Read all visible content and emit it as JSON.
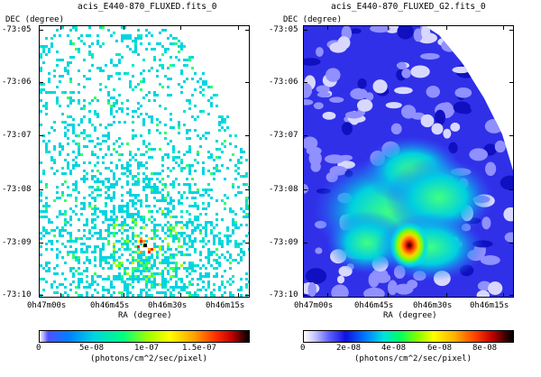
{
  "left_panel": {
    "title": "acis_E440-870_FLUXED.fits_0",
    "y_axis_title": "DEC (degree)",
    "x_axis_title": "RA (degree)",
    "y_ticks": [
      "-73:05",
      "-73:06",
      "-73:07",
      "-73:08",
      "-73:09",
      "-73:10"
    ],
    "x_ticks": [
      "0h47m00s",
      "0h46m45s",
      "0h46m30s",
      "0h46m15s"
    ],
    "colorbar_ticks": [
      "0",
      "5e-08",
      "1e-07",
      "1.5e-07"
    ],
    "colorbar_label": "(photons/cm^2/sec/pixel)",
    "colors": {
      "background": "#ffffff",
      "sparse": "#00d4e0",
      "mid": "#33ff66",
      "peak": "#ff0000"
    }
  },
  "right_panel": {
    "title": "acis_E440-870_FLUXED_G2.fits_0",
    "y_axis_title": "DEC (degree)",
    "x_axis_title": "RA (degree)",
    "y_ticks": [
      "-73:05",
      "-73:06",
      "-73:07",
      "-73:08",
      "-73:09",
      "-73:10"
    ],
    "x_ticks": [
      "0h47m00s",
      "0h46m45s",
      "0h46m30s",
      "0h46m15s"
    ],
    "colorbar_ticks": [
      "0",
      "2e-08",
      "4e-08",
      "6e-08",
      "8e-08"
    ],
    "colorbar_label": "(photons/cm^2/sec/pixel)",
    "colors": {
      "low": "#2020d0",
      "cool": "#8080ff",
      "warm": "#00ffff",
      "peak": "#000000"
    }
  }
}
